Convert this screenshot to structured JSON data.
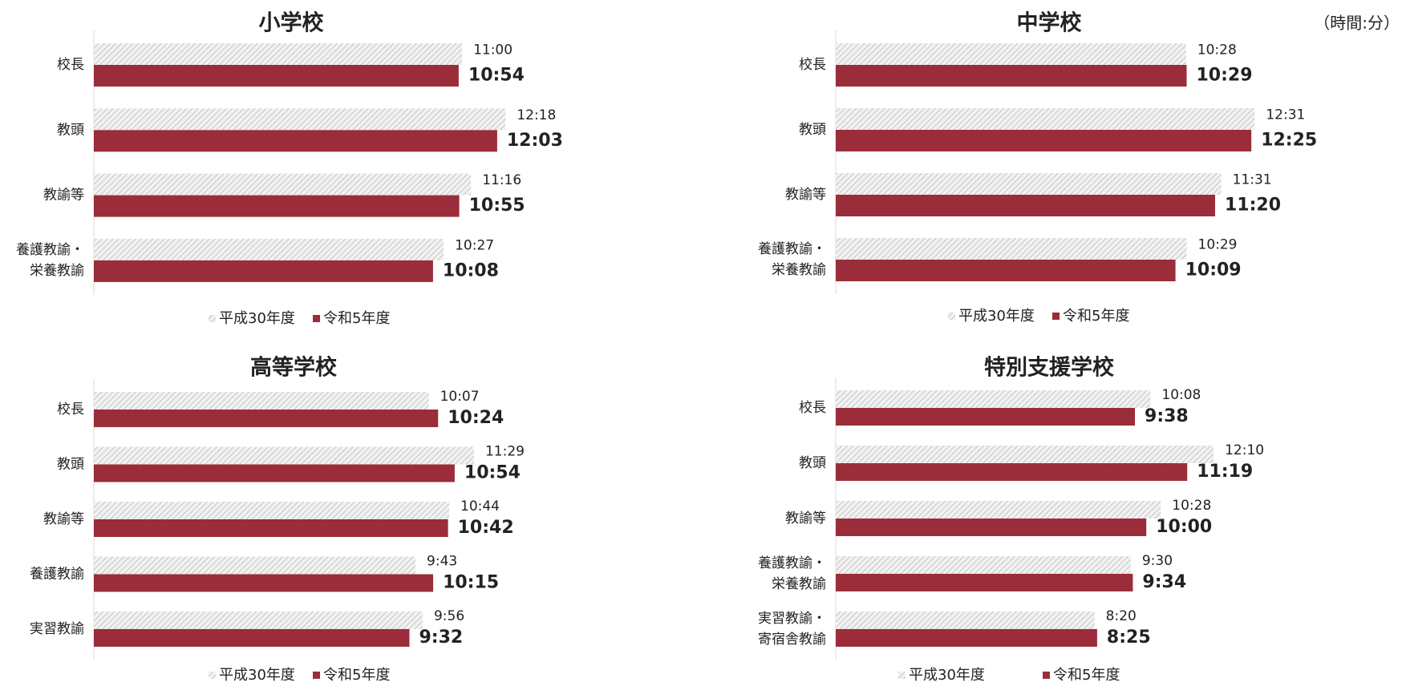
{
  "note": "（時間:分）",
  "chart_data": [
    {
      "type": "bar",
      "orientation": "horizontal",
      "title": "小学校",
      "categories": [
        [
          "校長"
        ],
        [
          "教頭"
        ],
        [
          "教諭等"
        ],
        [
          "養護教諭・",
          "栄養教諭"
        ]
      ],
      "xlim": [
        0,
        900
      ],
      "series": [
        {
          "name": "平成30年度",
          "color": "#d0d0d0",
          "pattern": "hatch",
          "values": [
            660,
            738,
            676,
            627
          ],
          "value_labels": [
            "11:00",
            "12:18",
            "11:16",
            "10:27"
          ]
        },
        {
          "name": "令和5年度",
          "color": "#9b2d3a",
          "values": [
            654,
            723,
            655,
            608
          ],
          "value_labels": [
            "10:54",
            "12:03",
            "10:55",
            "10:08"
          ]
        }
      ]
    },
    {
      "type": "bar",
      "orientation": "horizontal",
      "title": "中学校",
      "categories": [
        [
          "校長"
        ],
        [
          "教頭"
        ],
        [
          "教諭等"
        ],
        [
          "養護教諭・",
          "栄養教諭"
        ]
      ],
      "xlim": [
        0,
        900
      ],
      "series": [
        {
          "name": "平成30年度",
          "color": "#d0d0d0",
          "pattern": "hatch",
          "values": [
            628,
            751,
            691,
            629
          ],
          "value_labels": [
            "10:28",
            "12:31",
            "11:31",
            "10:29"
          ]
        },
        {
          "name": "令和5年度",
          "color": "#9b2d3a",
          "values": [
            629,
            745,
            680,
            609
          ],
          "value_labels": [
            "10:29",
            "12:25",
            "11:20",
            "10:09"
          ]
        }
      ]
    },
    {
      "type": "bar",
      "orientation": "horizontal",
      "title": "高等学校",
      "categories": [
        [
          "校長"
        ],
        [
          "教頭"
        ],
        [
          "教諭等"
        ],
        [
          "養護教諭"
        ],
        [
          "実習教諭"
        ]
      ],
      "xlim": [
        0,
        910
      ],
      "series": [
        {
          "name": "平成30年度",
          "color": "#d0d0d0",
          "pattern": "hatch",
          "values": [
            607,
            689,
            644,
            583,
            596
          ],
          "value_labels": [
            "10:07",
            "11:29",
            "10:44",
            "9:43",
            "9:56"
          ]
        },
        {
          "name": "令和5年度",
          "color": "#9b2d3a",
          "values": [
            624,
            654,
            642,
            615,
            572
          ],
          "value_labels": [
            "10:24",
            "10:54",
            "10:42",
            "10:15",
            "9:32"
          ]
        }
      ]
    },
    {
      "type": "bar",
      "orientation": "horizontal",
      "title": "特別支援学校",
      "categories": [
        [
          "校長"
        ],
        [
          "教頭"
        ],
        [
          "教諭等"
        ],
        [
          "養護教諭・",
          "栄養教諭"
        ],
        [
          "実習教諭・",
          "寄宿舎教諭"
        ]
      ],
      "xlim": [
        0,
        970
      ],
      "series": [
        {
          "name": "平成30年度",
          "color": "#d0d0d0",
          "pattern": "hatch",
          "values": [
            608,
            730,
            628,
            570,
            500
          ],
          "value_labels": [
            "10:08",
            "12:10",
            "10:28",
            "9:30",
            "8:20"
          ]
        },
        {
          "name": "令和5年度",
          "color": "#9b2d3a",
          "values": [
            578,
            679,
            600,
            574,
            505
          ],
          "value_labels": [
            "9:38",
            "11:19",
            "10:00",
            "9:34",
            "8:25"
          ]
        }
      ]
    }
  ]
}
